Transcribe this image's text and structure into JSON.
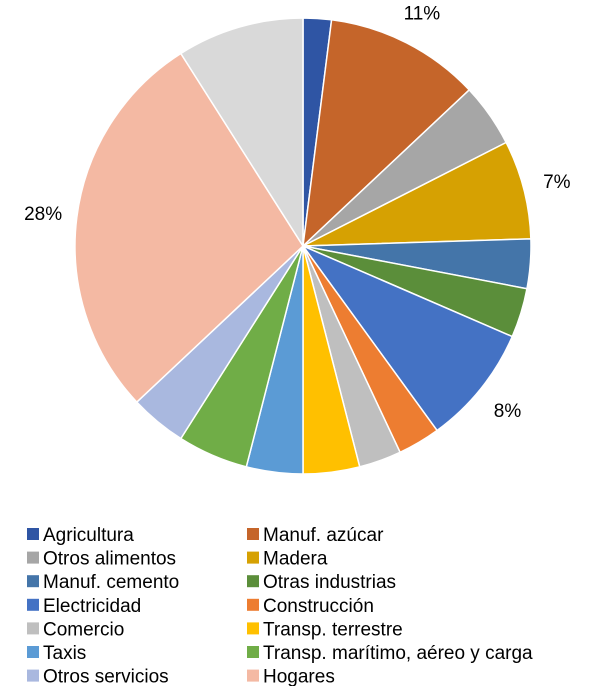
{
  "chart_data": {
    "type": "pie",
    "start": "top",
    "direction": "clockwise",
    "legend": {
      "placement": "bottom",
      "columns": 2
    },
    "slices": [
      {
        "name": "Agricultura",
        "value": 2.0,
        "color": "#2F55A4",
        "label": ""
      },
      {
        "name": "Manuf. azúcar",
        "value": 11.0,
        "color": "#C5652A",
        "label": "11%"
      },
      {
        "name": "Otros alimentos",
        "value": 4.5,
        "color": "#A6A6A6",
        "label": ""
      },
      {
        "name": "Madera",
        "value": 7.0,
        "color": "#D6A102",
        "label": "7%"
      },
      {
        "name": "Manuf. cemento",
        "value": 3.5,
        "color": "#4475A9",
        "label": ""
      },
      {
        "name": "Otras industrias",
        "value": 3.5,
        "color": "#5B8E3A",
        "label": ""
      },
      {
        "name": "Electricidad",
        "value": 8.5,
        "color": "#4472C4",
        "label": "8%"
      },
      {
        "name": "Construcción",
        "value": 3.0,
        "color": "#ED7D31",
        "label": ""
      },
      {
        "name": "Comercio",
        "value": 3.0,
        "color": "#BFBFBF",
        "label": ""
      },
      {
        "name": "Transp. terrestre",
        "value": 4.0,
        "color": "#FFC000",
        "label": ""
      },
      {
        "name": "Taxis",
        "value": 4.0,
        "color": "#5B9BD5",
        "label": ""
      },
      {
        "name": "Transp. marítimo, aéreo y carga",
        "value": 5.0,
        "color": "#70AD47",
        "label": ""
      },
      {
        "name": "Otros servicios",
        "value": 4.0,
        "color": "#A9B8DF",
        "label": ""
      },
      {
        "name": "Hogares",
        "value": 28.0,
        "color": "#F4B9A3",
        "label": "28%"
      },
      {
        "name": "",
        "value": 9.0,
        "color": "#D9D9D9",
        "label": ""
      }
    ]
  }
}
